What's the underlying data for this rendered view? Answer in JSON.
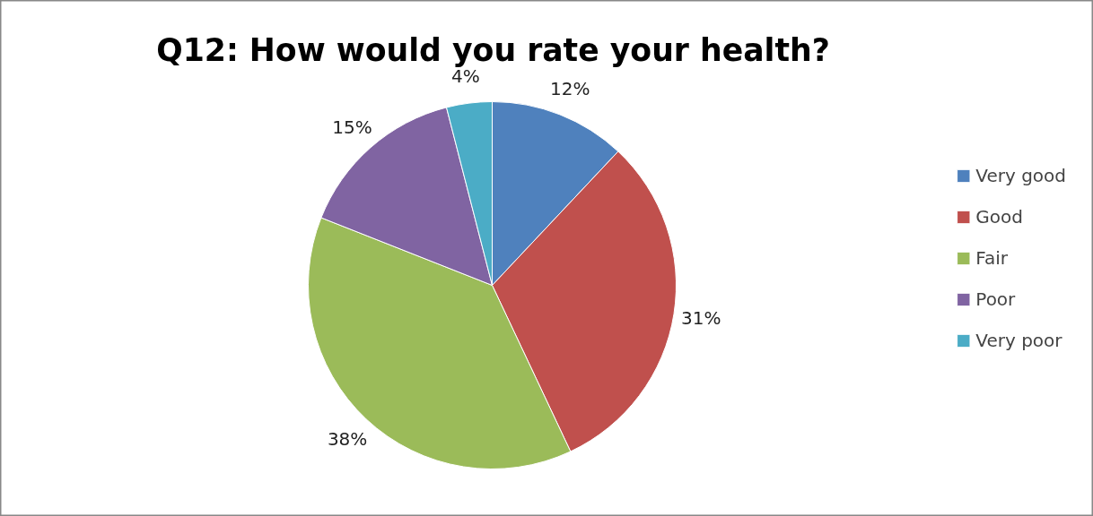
{
  "chart_data": {
    "type": "pie",
    "title": "Q12: How would you rate your health?",
    "categories": [
      "Very good",
      "Good",
      "Fair",
      "Poor",
      "Very poor"
    ],
    "values": [
      12,
      31,
      38,
      15,
      4
    ],
    "value_labels": [
      "12%",
      "31%",
      "38%",
      "15%",
      "4%"
    ],
    "colors": [
      "#4f81bd",
      "#c0504d",
      "#9bbb59",
      "#8064a2",
      "#4bacc6"
    ],
    "legend": "right"
  }
}
